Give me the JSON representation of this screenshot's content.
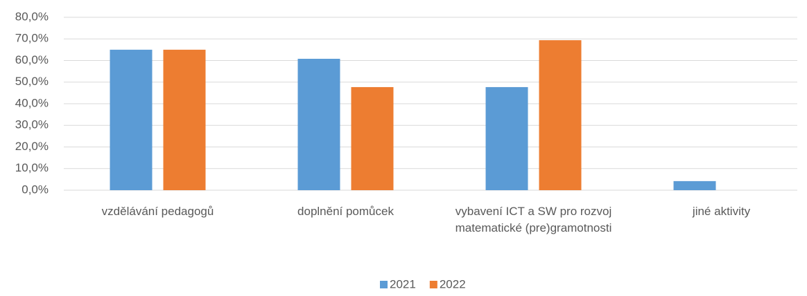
{
  "chart_data": {
    "type": "bar",
    "categories": [
      "vzdělávání pedagogů",
      "doplnění pomůcek",
      "vybavení ICT a SW pro rozvoj matematické (pre)gramotnosti",
      "jiné aktivity"
    ],
    "series": [
      {
        "name": "2021",
        "color": "#5b9bd5",
        "values": [
          65.0,
          60.8,
          47.7,
          4.2
        ]
      },
      {
        "name": "2022",
        "color": "#ed7d31",
        "values": [
          65.0,
          47.7,
          69.4,
          0
        ]
      }
    ],
    "ylim": [
      0,
      80
    ],
    "yticks": [
      {
        "value": 0,
        "label": "0,0%"
      },
      {
        "value": 10,
        "label": "10,0%"
      },
      {
        "value": 20,
        "label": "20,0%"
      },
      {
        "value": 30,
        "label": "30,0%"
      },
      {
        "value": 40,
        "label": "40,0%"
      },
      {
        "value": 50,
        "label": "50,0%"
      },
      {
        "value": 60,
        "label": "60,0%"
      },
      {
        "value": 70,
        "label": "70,0%"
      },
      {
        "value": 80,
        "label": "80,0%"
      }
    ],
    "grid": true,
    "legend": "bottom"
  }
}
